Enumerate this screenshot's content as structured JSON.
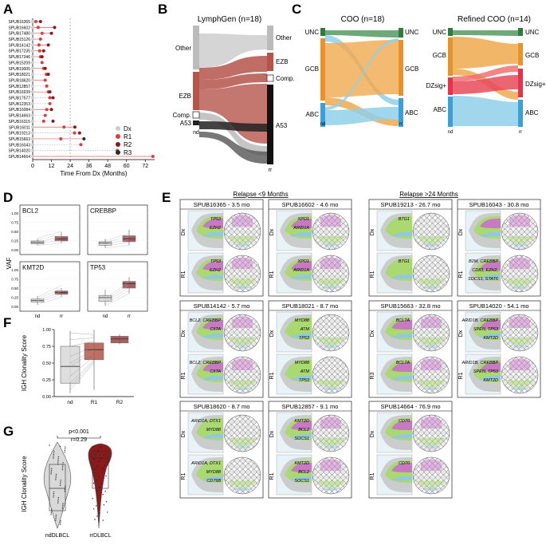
{
  "panels": {
    "A": "A",
    "B": "B",
    "C": "C",
    "D": "D",
    "E": "E",
    "F": "F",
    "G": "G"
  },
  "panelA": {
    "samples": [
      "SPUB16365",
      "SPUB16602",
      "SPUB17480",
      "SPUB15126",
      "SPUB14142",
      "SPUB17235",
      "SPUB17346",
      "SPUB15209",
      "SPUB19005",
      "SPUB18021",
      "SPUB18620",
      "SPUB12857",
      "SPUB16939",
      "SPUB17577",
      "SPUB12353",
      "SPUB16084",
      "SPUB14663",
      "SPUB16315",
      "SPUB16011",
      "SPUB19213",
      "SPUB15663",
      "SPUB16043",
      "SPUB14020",
      "SPUB14664"
    ],
    "ticks": [
      "0",
      "12",
      "24",
      "36",
      "48",
      "60",
      "72"
    ],
    "xlabel": "Time From Dx (Months)",
    "legend": [
      "Dx",
      "R1",
      "R2",
      "R3"
    ],
    "colors": {
      "Dx": "#cccccc",
      "R1": "#e03c3c",
      "R2": "#8b1a1a",
      "R3": "#2b2b2b"
    }
  },
  "panelB": {
    "title": "LymphGen (n=18)",
    "left": [
      "Other",
      "EZB",
      "Comp.",
      "A53"
    ],
    "right": [
      "Other",
      "EZB",
      "Comp.",
      "A53"
    ],
    "xl": "nd",
    "xr": "rr"
  },
  "panelC": {
    "title1": "COO (n=18)",
    "title2": "Refined COO (n=14)",
    "c1": [
      "UNC",
      "GCB",
      "ABC"
    ],
    "c2": [
      "UNC",
      "GCB",
      "DZsig+",
      "ABC"
    ],
    "xl": "nd",
    "xr": "rr"
  },
  "panelD": {
    "genes": [
      "BCL2",
      "CREBBP",
      "KMT2D",
      "TP53"
    ],
    "ylabel": "VAF",
    "ticks": [
      "1.00",
      "0.75",
      "0.50",
      "0.25",
      "0.00"
    ],
    "xl": "nd",
    "xr": "rr"
  },
  "panelE": {
    "header1": "Relapse <9 Months",
    "header2": "Relapse >24 Months",
    "cases": [
      {
        "title": "SPUB16365 - 3.5 mo",
        "r": "R1",
        "g1": [
          "TP53",
          "EZH2"
        ],
        "g2": [
          "TP53",
          "EZH2"
        ]
      },
      {
        "title": "SPUB16602 - 4.6 mo",
        "r": "R1",
        "g1": [
          "XPO1",
          "ARID1A"
        ],
        "g2": [
          "XPO1",
          "ARID1A"
        ]
      },
      {
        "title": "SPUB19213 - 26.7 mo",
        "r": "R1",
        "g1": [
          "BTG1"
        ],
        "g2": [
          "BTG1"
        ]
      },
      {
        "title": "SPUB16043 - 30.8 mo",
        "r": "R1",
        "g1": [],
        "g2": [
          "B2M, CREBBP",
          "CD83, EZH2,",
          "SOCS1, STAT6"
        ]
      },
      {
        "title": "SPUB14142 - 5.7 mo",
        "r": "R1",
        "g1": [
          "BCL2, CREBBP",
          "CIITA"
        ],
        "g2": [
          "BCL2, CREBBP",
          "CIITA"
        ]
      },
      {
        "title": "SPUB18021 - 8.7 mo",
        "r": "R1",
        "g1": [
          "MYD88",
          "ATM",
          "TP53"
        ],
        "g2": [
          "MYD88",
          "ATM",
          "TP53"
        ]
      },
      {
        "title": "SPUB15663 - 32.8 mo",
        "r": "R3",
        "g1": [
          "BCL7A"
        ],
        "g2": [
          "BCL7A"
        ]
      },
      {
        "title": "SPUB14020 - 54.1 mo",
        "r": "R1",
        "g1": [
          "ARID1B, CREBBP",
          "SPEN, TP53",
          "KMT2D"
        ],
        "g2": [
          "ARID1B, CREBBP",
          "SPEN, TP53",
          "KMT2D"
        ]
      },
      {
        "title": "SPUB18620 - 8.7 mo",
        "r": "R1",
        "g1": [
          "ARID1A, DTX1",
          "MYD88"
        ],
        "g2": [
          "ARID1A, DTX1",
          "MYD88",
          "CD79B"
        ]
      },
      {
        "title": "SPUB12857 - 9.1 mo",
        "r": "R1",
        "g1": [
          "KMT2D",
          "BCL2",
          "SOCS1"
        ],
        "g2": [
          "KMT2D",
          "BCL2",
          "SOCS1"
        ]
      },
      {
        "title": "SPUB14664 - 76.9 mo",
        "r": "R1",
        "g1": [
          "CD70"
        ],
        "g2": [
          "CD70"
        ]
      }
    ],
    "dx": "Dx"
  },
  "panelF": {
    "ylabel": "IGH Clonality Score",
    "cats": [
      "nd",
      "R1",
      "R2"
    ],
    "ticks": [
      "1.00",
      "0.75",
      "0.50",
      "0.25",
      "0.00"
    ]
  },
  "panelG": {
    "ylabel": "IGH Clonality Score",
    "cats": [
      "ndDLBCL",
      "rrDLBCL"
    ],
    "p": "p<0.001",
    "r": "r=0.29"
  }
}
